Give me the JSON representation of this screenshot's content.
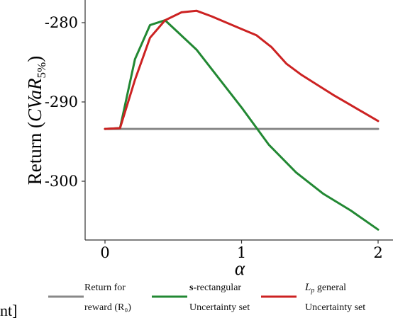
{
  "chart_data": {
    "type": "line",
    "xlabel": "α",
    "ylabel_prefix": "Return (",
    "ylabel_math": "CVaR",
    "ylabel_sub": "5%",
    "ylabel_suffix": ")",
    "xlim": [
      -0.05,
      2.0
    ],
    "ylim": [
      -306.5,
      -277.5
    ],
    "x_ticks": [
      0,
      1,
      2
    ],
    "x_tick_labels": [
      "0",
      "1",
      "2"
    ],
    "y_ticks": [
      -280,
      -290,
      -300
    ],
    "y_tick_labels": [
      "-280",
      "-290",
      "-300"
    ],
    "grid": false,
    "legend_position": "bottom",
    "series": [
      {
        "name": "Return for reward (R0)",
        "legend_lines": [
          "Return for",
          "reward (R₀)"
        ],
        "color": "#888888",
        "x": [
          0,
          0.11,
          0.22,
          0.33,
          0.44,
          0.5,
          1.0,
          1.5,
          2.0
        ],
        "y": [
          -293.4,
          -293.4,
          -293.4,
          -293.4,
          -293.4,
          -293.4,
          -293.4,
          -293.4,
          -293.4
        ]
      },
      {
        "name": "s-rectangular Uncertainty set",
        "legend_lines": [
          "s-rectangular",
          "Uncertainty set"
        ],
        "color": "#228833",
        "x": [
          0,
          0.11,
          0.22,
          0.33,
          0.44,
          0.67,
          1.0,
          1.2,
          1.4,
          1.6,
          1.8,
          2.0
        ],
        "y": [
          -293.4,
          -293.3,
          -284.6,
          -280.3,
          -279.7,
          -283.4,
          -290.7,
          -295.4,
          -298.9,
          -301.6,
          -303.7,
          -306.1
        ]
      },
      {
        "name": "Lp general Uncertainty set",
        "legend_lines": [
          "Lp general",
          "Uncertainty set"
        ],
        "color": "#cc2222",
        "x": [
          0,
          0.11,
          0.22,
          0.33,
          0.44,
          0.56,
          0.67,
          0.78,
          0.89,
          1.0,
          1.11,
          1.22,
          1.33,
          1.44,
          1.56,
          1.67,
          1.78,
          1.89,
          2.0
        ],
        "y": [
          -293.4,
          -293.3,
          -287.2,
          -281.9,
          -279.7,
          -278.7,
          -278.5,
          -279.2,
          -280.0,
          -280.8,
          -281.6,
          -283.1,
          -285.2,
          -286.6,
          -287.9,
          -289.1,
          -290.2,
          -291.3,
          -292.4
        ]
      }
    ]
  },
  "page_edge_text": "nt]"
}
